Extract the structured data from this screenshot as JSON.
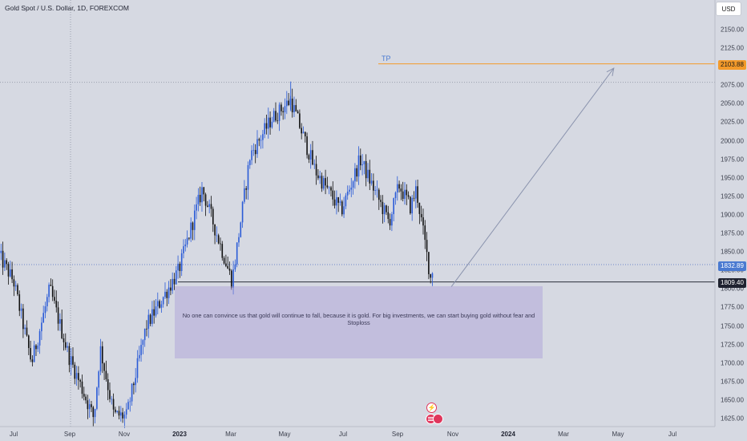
{
  "header": {
    "title": "Gold Spot / U.S. Dollar, 1D, FOREXCOM",
    "currency": "USD"
  },
  "price_axis": {
    "labels": [
      "2150.00",
      "2125.00",
      "2100.00",
      "2075.00",
      "2050.00",
      "2025.00",
      "2000.00",
      "1975.00",
      "1950.00",
      "1925.00",
      "1900.00",
      "1875.00",
      "1850.00",
      "1825.00",
      "1800.00",
      "1775.00",
      "1750.00",
      "1725.00",
      "1700.00",
      "1675.00",
      "1650.00",
      "1625.00"
    ]
  },
  "time_axis": {
    "labels": [
      {
        "text": "Jul",
        "bold": false
      },
      {
        "text": "Sep",
        "bold": false
      },
      {
        "text": "Nov",
        "bold": false
      },
      {
        "text": "2023",
        "bold": true
      },
      {
        "text": "Mar",
        "bold": false
      },
      {
        "text": "May",
        "bold": false
      },
      {
        "text": "Jul",
        "bold": false
      },
      {
        "text": "Sep",
        "bold": false
      },
      {
        "text": "Nov",
        "bold": false
      },
      {
        "text": "2024",
        "bold": true
      },
      {
        "text": "Mar",
        "bold": false
      },
      {
        "text": "May",
        "bold": false
      },
      {
        "text": "Jul",
        "bold": false
      }
    ]
  },
  "price_tags": {
    "tp": "2103.88",
    "current": "1832.89",
    "support": "1809.40"
  },
  "annotations": {
    "tp_label": "TP",
    "note": "No one can convince us that gold will continue to fall, because it is gold. For big investments, we can start buying gold without fear and  Stoploss"
  },
  "colors": {
    "background": "#d6d9e2",
    "up": "#2a5bd7",
    "down": "#111111",
    "tp_line": "#f39a2a",
    "note_box": "#a898d6",
    "arrow": "#8a93ad"
  },
  "chart_data": {
    "type": "candlestick",
    "symbol": "Gold Spot / U.S. Dollar",
    "interval": "1D",
    "ylim": [
      1615,
      2165
    ],
    "anchors": [
      {
        "date": "2022-06-15",
        "price": 1845
      },
      {
        "date": "2022-07-01",
        "price": 1810
      },
      {
        "date": "2022-07-21",
        "price": 1700
      },
      {
        "date": "2022-08-10",
        "price": 1800
      },
      {
        "date": "2022-08-31",
        "price": 1710
      },
      {
        "date": "2022-09-28",
        "price": 1625
      },
      {
        "date": "2022-10-05",
        "price": 1720
      },
      {
        "date": "2022-10-20",
        "price": 1630
      },
      {
        "date": "2022-11-03",
        "price": 1628
      },
      {
        "date": "2022-11-25",
        "price": 1750
      },
      {
        "date": "2022-12-31",
        "price": 1825
      },
      {
        "date": "2023-01-26",
        "price": 1935
      },
      {
        "date": "2023-02-28",
        "price": 1810
      },
      {
        "date": "2023-03-20",
        "price": 1980
      },
      {
        "date": "2023-04-13",
        "price": 2030
      },
      {
        "date": "2023-05-04",
        "price": 2055
      },
      {
        "date": "2023-05-31",
        "price": 1960
      },
      {
        "date": "2023-06-29",
        "price": 1905
      },
      {
        "date": "2023-07-20",
        "price": 1975
      },
      {
        "date": "2023-08-21",
        "price": 1890
      },
      {
        "date": "2023-09-01",
        "price": 1940
      },
      {
        "date": "2023-09-14",
        "price": 1910
      },
      {
        "date": "2023-09-20",
        "price": 1935
      },
      {
        "date": "2023-10-06",
        "price": 1815
      },
      {
        "date": "2023-10-09",
        "price": 1832.89
      }
    ],
    "levels": {
      "tp": 2103.88,
      "current": 1832.89,
      "support": 1809.4,
      "high_dotted": 2079,
      "zone": [
        1705,
        1805
      ]
    },
    "arrow": {
      "from": {
        "date": "2023-10-29",
        "price": 1803
      },
      "to": {
        "date": "2024-04-26",
        "price": 2098
      }
    },
    "grid": false
  }
}
